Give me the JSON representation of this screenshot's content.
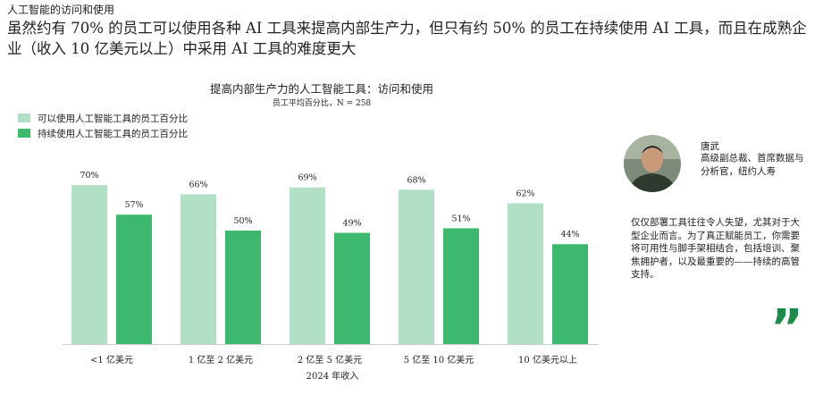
{
  "header": {
    "kicker": "人工智能的访问和使用",
    "headline": "虽然约有 70% 的员工可以使用各种 AI 工具来提高内部生产力，但只有约 50% 的员工在持续使用 AI 工具，而且在成熟企业（收入 10 亿美元以上）中采用 AI 工具的难度更大"
  },
  "chart_data": {
    "type": "bar",
    "title": "提高内部生产力的人工智能工具：访问和使用",
    "subtitle": "员工平均百分比，N = 258",
    "x_label": "2024 年收入",
    "categories": [
      "<1 亿美元",
      "1 亿至 2 亿美元",
      "2 亿至 5 亿美元",
      "5 亿至 10 亿美元",
      "10 亿美元以上"
    ],
    "series": [
      {
        "name": "可以使用人工智能工具的员工百分比",
        "color": "#b2e0c6",
        "values": [
          70,
          66,
          69,
          68,
          62
        ],
        "value_labels": [
          "70%",
          "66%",
          "69%",
          "68%",
          "62%"
        ]
      },
      {
        "name": "持续使用人工智能工具的员工百分比",
        "color": "#3db96f",
        "values": [
          57,
          50,
          49,
          51,
          44
        ],
        "value_labels": [
          "57%",
          "50%",
          "49%",
          "51%",
          "44%"
        ]
      }
    ]
  },
  "profile": {
    "name": "唐武",
    "role": "高级副总裁、首席数据与分析官，纽约人寿"
  },
  "quote": "仅仅部署工具往往令人失望，尤其对于大型企业而言。为了真正赋能员工，你需要将可用性与脚手架相结合，包括培训、聚焦拥护者，以及最重要的——持续的高管支持。"
}
